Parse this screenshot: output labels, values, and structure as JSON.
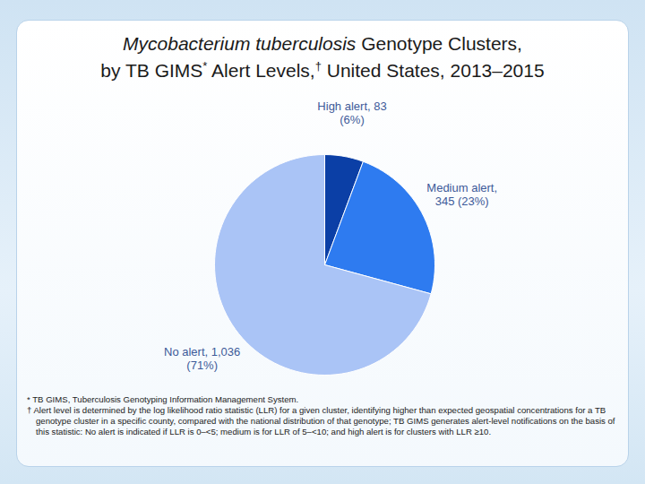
{
  "chart_data": {
    "type": "pie",
    "title": "Mycobacterium tuberculosis Genotype Clusters, by TB GIMS* Alert Levels,† United States, 2013–2015",
    "categories": [
      "High alert",
      "Medium alert",
      "No alert"
    ],
    "values": [
      83,
      345,
      1036
    ],
    "value_labels": [
      "High alert, 83\n(6%)",
      "Medium alert,\n345 (23%)",
      "No alert, 1,036\n(71%)"
    ],
    "colors": [
      "#0b3fa6",
      "#2e7bf0",
      "#aac4f6"
    ],
    "data_labels": true,
    "annotations": [
      "* TB GIMS, Tuberculosis Genotyping Information Management System.",
      "† Alert level is determined by the log likelihood ratio statistic (LLR) for a given cluster, identifying higher than expected geospatial concentrations for a TB genotype cluster in a specific county, compared with the national distribution of that genotype; TB GIMS generates alert-level notifications on the basis of this statistic: No alert is indicated if LLR is 0–<5; medium is for LLR of 5–<10; and high alert is for clusters with LLR ≥10."
    ]
  }
}
